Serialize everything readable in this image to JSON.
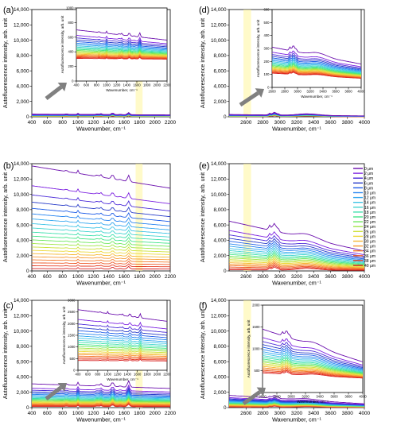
{
  "figure": {
    "colors": [
      "#6a0dad",
      "#7b1fe0",
      "#4b2bd8",
      "#2b3ec9",
      "#1e5de8",
      "#2a86f0",
      "#33a7ef",
      "#3ec3e6",
      "#44d5cf",
      "#3fe0ad",
      "#45e58a",
      "#6fe85e",
      "#a3e64a",
      "#cde23f",
      "#ecd93a",
      "#f6b836",
      "#f79a34",
      "#f47a2e",
      "#ee5a28",
      "#e53a22",
      "#d81f1f"
    ]
  },
  "chart_data": [
    {
      "type": "line",
      "panel_label": "(a)",
      "xlabel": "Wavenumber, cm⁻¹",
      "ylabel": "Autofluorescence intensity, arb. unit",
      "xlim": [
        400,
        2200
      ],
      "ylim": [
        0,
        14000
      ],
      "x_ticks": [
        400,
        600,
        800,
        1000,
        1200,
        1400,
        1600,
        1800,
        2000,
        2200
      ],
      "y_ticks": [
        0,
        2000,
        4000,
        6000,
        8000,
        10000,
        12000,
        14000
      ],
      "y_tick_labels": [
        "0",
        "2,000",
        "4,000",
        "6,000",
        "8,000",
        "10,000",
        "12,000",
        "14,000"
      ],
      "highlight_band": [
        1750,
        1840
      ],
      "profile": "fp",
      "curves": {
        "top": [
          350,
          250
        ],
        "bottom": [
          40,
          40
        ]
      },
      "inset": {
        "xlabel": "Wavenumber, cm⁻¹",
        "ylabel": "Autofluorescence intensity, arb. unit",
        "xlim": [
          400,
          2200
        ],
        "ylim": [
          0,
          1000
        ],
        "x_ticks": [
          400,
          600,
          800,
          1000,
          1200,
          1400,
          1600,
          1800,
          2000,
          2200
        ],
        "y_ticks": [
          0,
          200,
          400,
          600,
          800,
          1000
        ],
        "curves": {
          "top": [
            700,
            560
          ],
          "bottom": [
            310,
            300
          ]
        }
      }
    },
    {
      "type": "line",
      "panel_label": "(b)",
      "xlabel": "Wavenumber, cm⁻¹",
      "ylabel": "Autofluorescence intensity, arb. unit",
      "xlim": [
        400,
        2200
      ],
      "ylim": [
        0,
        14000
      ],
      "x_ticks": [
        400,
        600,
        800,
        1000,
        1200,
        1400,
        1600,
        1800,
        2000,
        2200
      ],
      "y_ticks": [
        0,
        2000,
        4000,
        6000,
        8000,
        10000,
        12000,
        14000
      ],
      "y_tick_labels": [
        "0",
        "2,000",
        "4,000",
        "6,000",
        "8,000",
        "10,000",
        "12,000",
        "14,000"
      ],
      "highlight_band": [
        1750,
        1840
      ],
      "profile": "fp",
      "curves": {
        "top": [
          13700,
          10800
        ],
        "bottom": [
          300,
          250
        ]
      }
    },
    {
      "type": "line",
      "panel_label": "(c)",
      "xlabel": "Wavenumber, cm⁻¹",
      "ylabel": "Autofluorescence intensity, arb. unit",
      "xlim": [
        400,
        2200
      ],
      "ylim": [
        0,
        14000
      ],
      "x_ticks": [
        400,
        600,
        800,
        1000,
        1200,
        1400,
        1600,
        1800,
        2000,
        2200
      ],
      "y_ticks": [
        0,
        2000,
        4000,
        6000,
        8000,
        10000,
        12000,
        14000
      ],
      "y_tick_labels": [
        "0",
        "2,000",
        "4,000",
        "6,000",
        "8,000",
        "10,000",
        "12,000",
        "14,000"
      ],
      "highlight_band": [
        1750,
        1840
      ],
      "profile": "fp",
      "curves": {
        "top": [
          3100,
          2500
        ],
        "bottom": [
          150,
          120
        ]
      },
      "inset": {
        "xlabel": "Wavenumber, cm⁻¹",
        "ylabel": "Autofluorescence intensity, arb. unit",
        "xlim": [
          400,
          2200
        ],
        "ylim": [
          0,
          3000
        ],
        "x_ticks": [
          400,
          600,
          800,
          1000,
          1200,
          1400,
          1600,
          1800,
          2000,
          2200
        ],
        "y_ticks": [
          0,
          500,
          1000,
          1500,
          2000,
          2500,
          3000
        ],
        "curves": {
          "top": [
            2600,
            2100
          ],
          "bottom": [
            420,
            400
          ]
        }
      }
    },
    {
      "type": "line",
      "panel_label": "(d)",
      "xlabel": "Wavenumber, cm⁻¹",
      "ylabel": "Autofluorescence intensity, arb. unit",
      "xlim": [
        2400,
        4000
      ],
      "ylim": [
        0,
        14000
      ],
      "x_ticks": [
        2600,
        2800,
        3000,
        3200,
        3400,
        3600,
        3800,
        4000
      ],
      "y_ticks": [
        0,
        2000,
        4000,
        6000,
        8000,
        10000,
        12000,
        14000
      ],
      "y_tick_labels": [
        "0",
        "2,000",
        "4,000",
        "6,000",
        "8,000",
        "10,000",
        "12,000",
        "14,000"
      ],
      "highlight_band": [
        2570,
        2660
      ],
      "profile": "hw",
      "curves": {
        "top": [
          300,
          120
        ],
        "bottom": [
          30,
          20
        ]
      },
      "inset": {
        "xlabel": "Wavenumber, cm⁻¹",
        "ylabel": "Autofluorescence intensity, arb. unit",
        "xlim": [
          2600,
          4000
        ],
        "ylim": [
          0,
          600
        ],
        "x_ticks": [
          2600,
          2800,
          3000,
          3200,
          3400,
          3600,
          3800,
          4000
        ],
        "y_ticks": [
          0,
          100,
          200,
          300,
          400,
          500,
          600
        ],
        "curves": {
          "top": [
            310,
            180
          ],
          "bottom": [
            110,
            70
          ]
        }
      }
    },
    {
      "type": "line",
      "panel_label": "(e)",
      "xlabel": "Wavenumber, cm⁻¹",
      "ylabel": "Autofluorescence intensity, arb. unit",
      "xlim": [
        2400,
        4000
      ],
      "ylim": [
        0,
        14000
      ],
      "x_ticks": [
        2600,
        2800,
        3000,
        3200,
        3400,
        3600,
        3800,
        4000
      ],
      "y_ticks": [
        0,
        2000,
        4000,
        6000,
        8000,
        10000,
        12000,
        14000
      ],
      "y_tick_labels": [
        "0",
        "2,000",
        "4,000",
        "6,000",
        "8,000",
        "10,000",
        "12,000",
        "14,000"
      ],
      "highlight_band": [
        2570,
        2660
      ],
      "profile": "hw",
      "curves": {
        "top": [
          6500,
          2600
        ],
        "bottom": [
          150,
          80
        ]
      },
      "legend": {
        "placement": "right",
        "entries": [
          "0 μm",
          "2 μm",
          "4 μm",
          "6 μm",
          "8 μm",
          "10 μm",
          "12 μm",
          "14 μm",
          "16 μm",
          "18 μm",
          "20 μm",
          "22 μm",
          "24 μm",
          "26 μm",
          "28 μm",
          "30 μm",
          "32 μm",
          "34 μm",
          "36 μm",
          "38 μm",
          "40 μm"
        ]
      }
    },
    {
      "type": "line",
      "panel_label": "(f)",
      "xlabel": "Wavenumber, cm⁻¹",
      "ylabel": "Autofluorescence intensity, arb. unit",
      "xlim": [
        2400,
        4000
      ],
      "ylim": [
        0,
        14000
      ],
      "x_ticks": [
        2600,
        2800,
        3000,
        3200,
        3400,
        3600,
        3800,
        4000
      ],
      "y_ticks": [
        0,
        2000,
        4000,
        6000,
        8000,
        10000,
        12000,
        14000
      ],
      "y_tick_labels": [
        "0",
        "2,000",
        "4,000",
        "6,000",
        "8,000",
        "10,000",
        "12,000",
        "14,000"
      ],
      "highlight_band": [
        2570,
        2660
      ],
      "profile": "hw",
      "curves": {
        "top": [
          1600,
          500
        ],
        "bottom": [
          80,
          40
        ]
      },
      "inset": {
        "xlabel": "Wavenumber, cm⁻¹",
        "ylabel": "Autofluorescence intensity, arb. unit",
        "xlim": [
          2600,
          4000
        ],
        "ylim": [
          0,
          2000
        ],
        "x_ticks": [
          2600,
          2800,
          3000,
          3200,
          3400,
          3600,
          3800,
          4000
        ],
        "y_ticks": [
          0,
          500,
          1000,
          1500,
          2000
        ],
        "curves": {
          "top": [
            1450,
            700
          ],
          "bottom": [
            450,
            330
          ]
        }
      }
    }
  ]
}
